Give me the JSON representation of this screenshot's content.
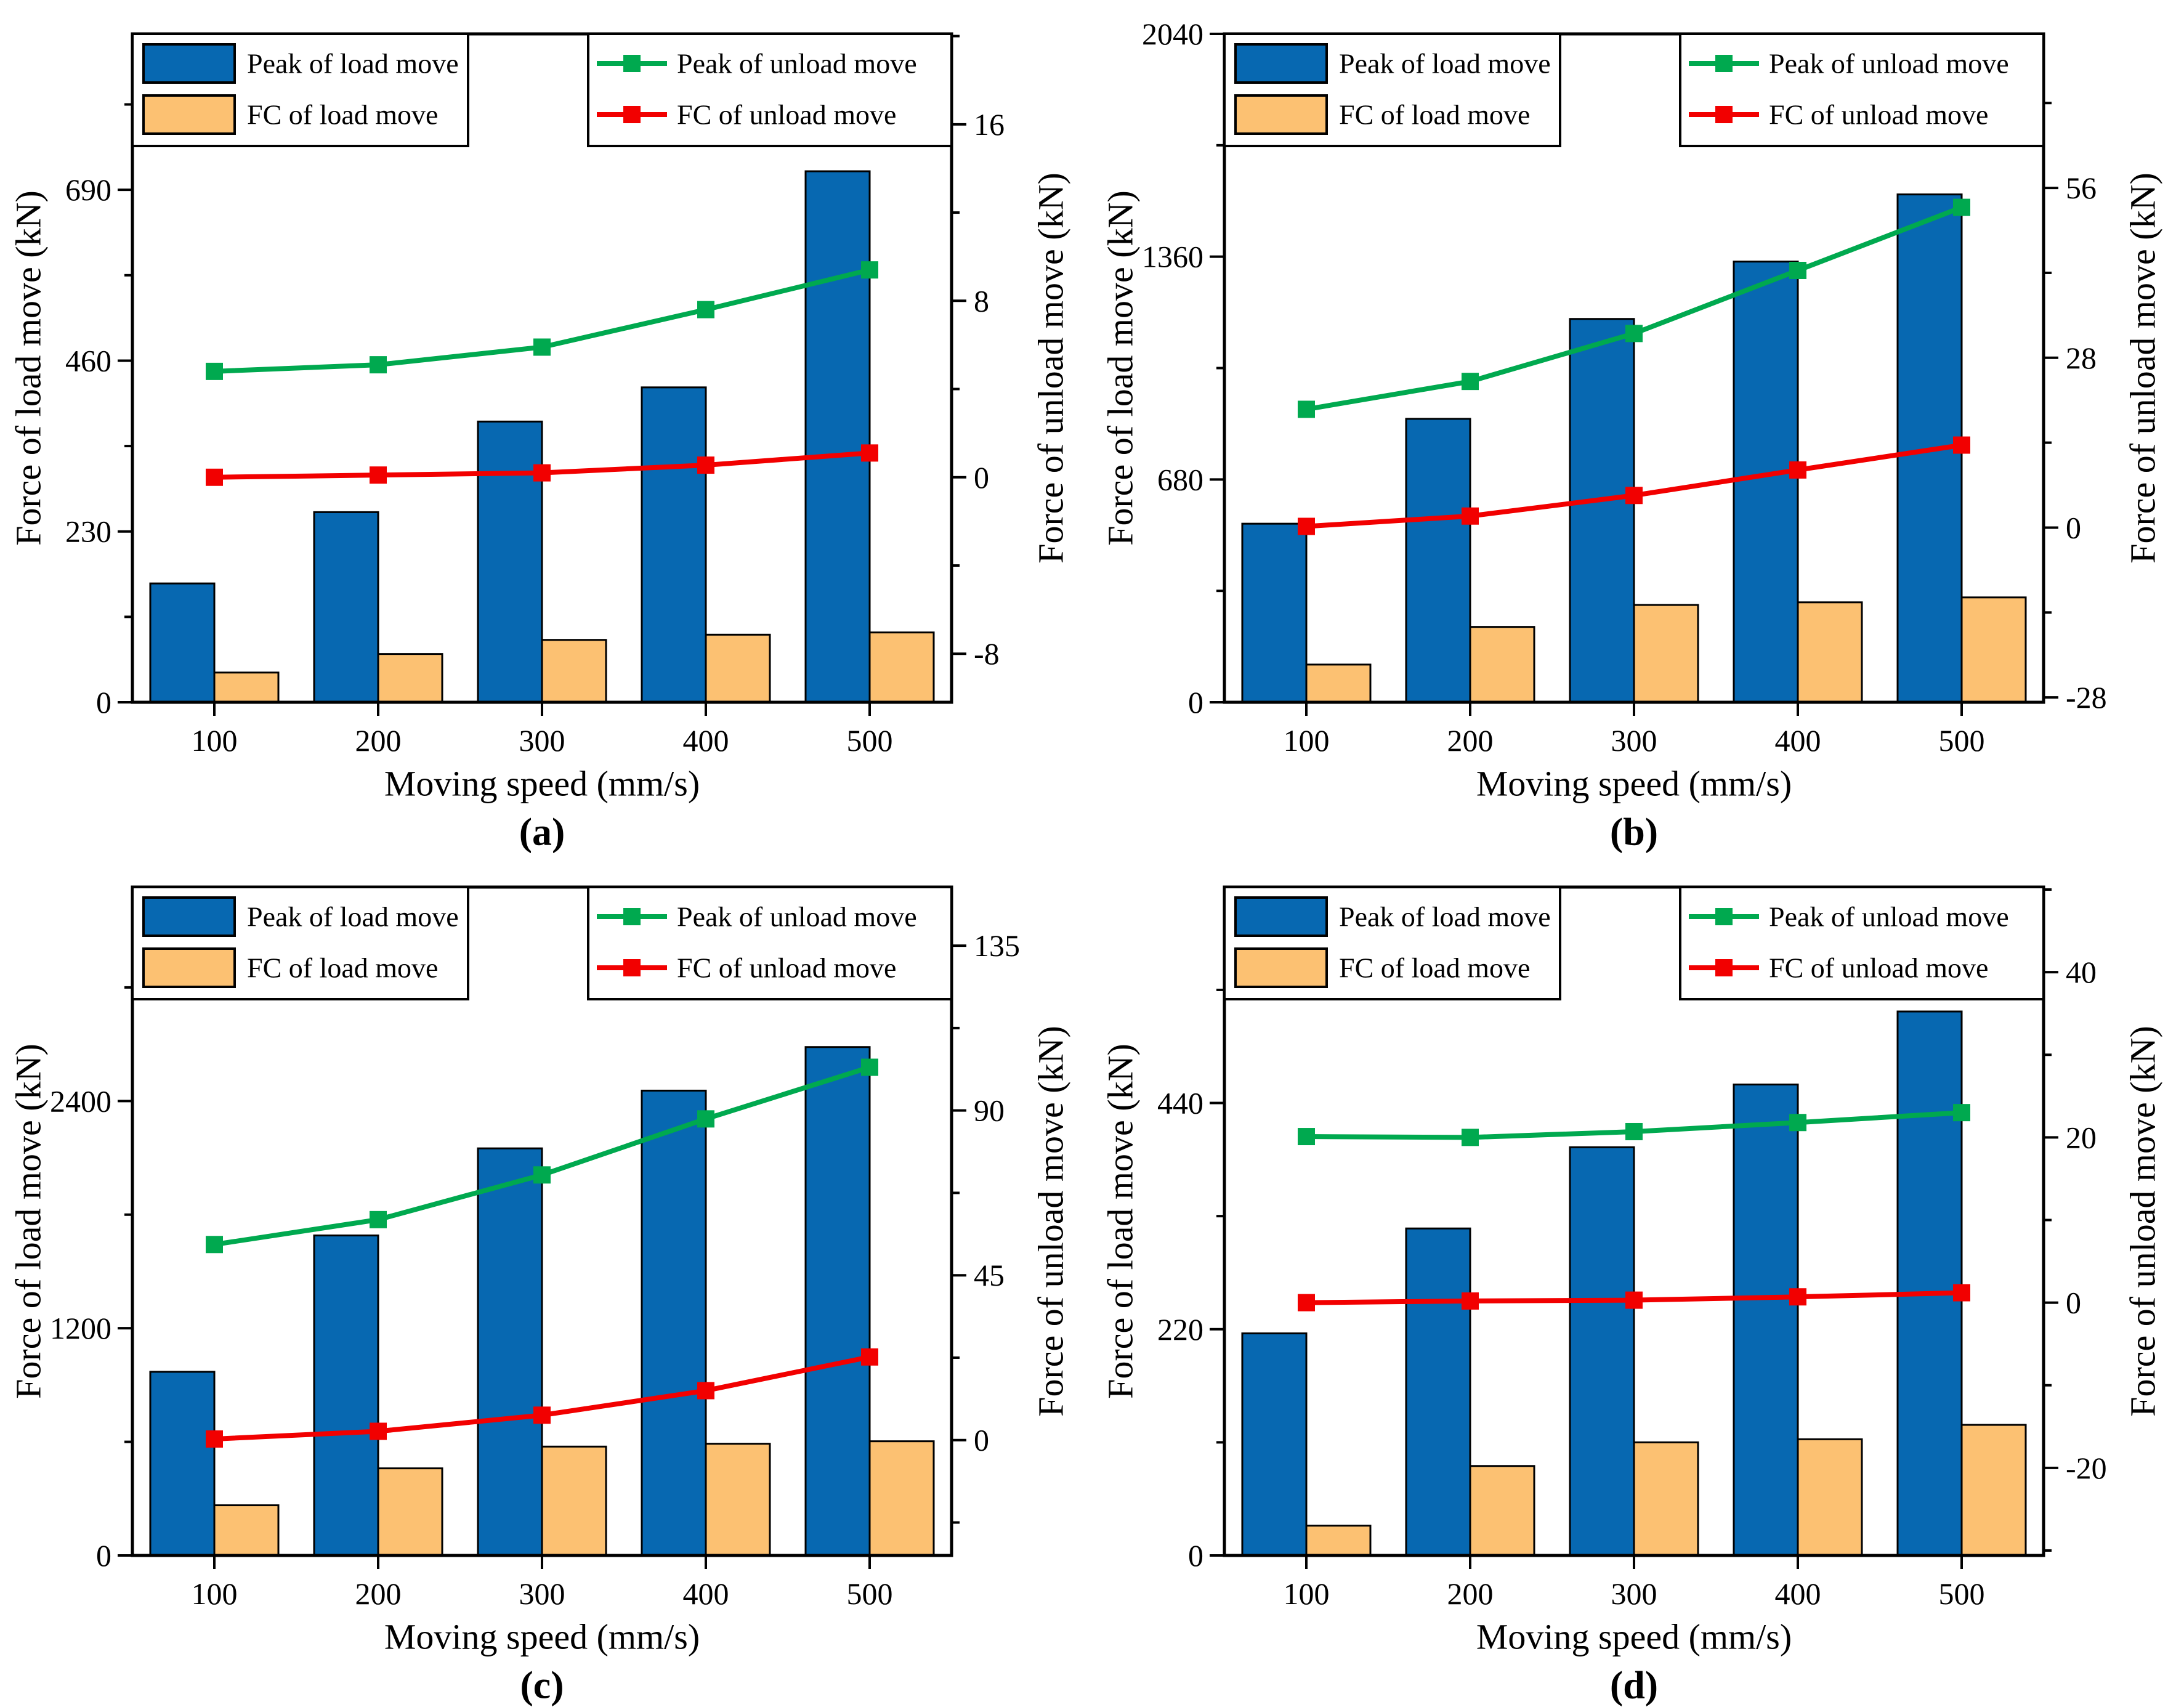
{
  "figure": {
    "background": "#ffffff",
    "xlabel": "Moving speed (mm/s)",
    "ylabel_left": "Force of load move (kN)",
    "ylabel_right": "Force of unload move (kN)",
    "legend": {
      "peak_load": "Peak of load move",
      "fc_load": "FC of load move",
      "peak_unload": "Peak of unload move",
      "fc_unload": "FC of unload move"
    },
    "colors": {
      "peak_load_bar": "#0768b1",
      "fc_load_bar": "#fcc172",
      "peak_unload_line": "#00a94f",
      "fc_unload_line": "#f20000",
      "axis": "#000000",
      "legend_bg": "#ffffff"
    }
  },
  "chart_data": [
    {
      "panel_label": "(a)",
      "type": "bar-line-dual-axis",
      "categories": [
        100,
        200,
        300,
        400,
        500
      ],
      "xlabel": "Moving speed (mm/s)",
      "ylabel_left": "Force of load move (kN)",
      "ylabel_right": "Force of unload move (kN)",
      "left_axis": {
        "ticks": [
          0,
          230,
          460,
          690
        ],
        "range": [
          0,
          900
        ]
      },
      "right_axis": {
        "ticks": [
          -8,
          0,
          8,
          16
        ],
        "range": [
          -10.2,
          20.1
        ]
      },
      "series": [
        {
          "name": "Peak of load move",
          "type": "bar",
          "axis": "left",
          "values": [
            160,
            256,
            378,
            424,
            715
          ]
        },
        {
          "name": "FC of load move",
          "type": "bar",
          "axis": "left",
          "values": [
            40,
            65,
            84,
            91,
            94
          ]
        },
        {
          "name": "Peak of unload move",
          "type": "line",
          "axis": "right",
          "values": [
            4.8,
            5.1,
            5.9,
            7.6,
            9.4
          ]
        },
        {
          "name": "FC of unload move",
          "type": "line",
          "axis": "right",
          "values": [
            0.0,
            0.1,
            0.2,
            0.55,
            1.1
          ]
        }
      ]
    },
    {
      "panel_label": "(b)",
      "type": "bar-line-dual-axis",
      "categories": [
        100,
        200,
        300,
        400,
        500
      ],
      "xlabel": "Moving speed (mm/s)",
      "ylabel_left": "Force of load move (kN)",
      "ylabel_right": "Force of unload move (kN)",
      "left_axis": {
        "ticks": [
          0,
          680,
          1360,
          2040
        ],
        "range": [
          0,
          2040
        ]
      },
      "right_axis": {
        "ticks": [
          -28,
          0,
          28,
          56
        ],
        "range": [
          -28.8,
          81.4
        ]
      },
      "series": [
        {
          "name": "Peak of load move",
          "type": "bar",
          "axis": "left",
          "values": [
            545,
            865,
            1170,
            1345,
            1550
          ]
        },
        {
          "name": "FC of load move",
          "type": "bar",
          "axis": "left",
          "values": [
            115,
            230,
            297,
            305,
            320
          ]
        },
        {
          "name": "Peak of unload move",
          "type": "line",
          "axis": "right",
          "values": [
            19.5,
            24.1,
            32.0,
            42.4,
            52.8
          ]
        },
        {
          "name": "FC of unload move",
          "type": "line",
          "axis": "right",
          "values": [
            0.2,
            1.9,
            5.3,
            9.5,
            13.6
          ]
        }
      ]
    },
    {
      "panel_label": "(c)",
      "type": "bar-line-dual-axis",
      "categories": [
        100,
        200,
        300,
        400,
        500
      ],
      "xlabel": "Moving speed (mm/s)",
      "ylabel_left": "Force of load move (kN)",
      "ylabel_right": "Force of unload move (kN)",
      "left_axis": {
        "ticks": [
          0,
          1200,
          2400
        ],
        "range": [
          0,
          3530
        ]
      },
      "right_axis": {
        "ticks": [
          0,
          45,
          90,
          135
        ],
        "range": [
          -31.5,
          151
        ]
      },
      "series": [
        {
          "name": "Peak of load move",
          "type": "bar",
          "axis": "left",
          "values": [
            970,
            1690,
            2150,
            2455,
            2685
          ]
        },
        {
          "name": "FC of load move",
          "type": "bar",
          "axis": "left",
          "values": [
            265,
            460,
            575,
            590,
            603
          ]
        },
        {
          "name": "Peak of unload move",
          "type": "line",
          "axis": "right",
          "values": [
            53.4,
            60.2,
            72.4,
            87.7,
            101.8
          ]
        },
        {
          "name": "FC of unload move",
          "type": "line",
          "axis": "right",
          "values": [
            0.3,
            2.4,
            6.8,
            13.5,
            22.7
          ]
        }
      ]
    },
    {
      "panel_label": "(d)",
      "type": "bar-line-dual-axis",
      "categories": [
        100,
        200,
        300,
        400,
        500
      ],
      "xlabel": "Moving speed (mm/s)",
      "ylabel_left": "Force of load move (kN)",
      "ylabel_right": "Force of unload move (kN)",
      "left_axis": {
        "ticks": [
          0,
          220,
          440
        ],
        "range": [
          0,
          650
        ]
      },
      "right_axis": {
        "ticks": [
          -20,
          0,
          20,
          40
        ],
        "range": [
          -30.6,
          50.3
        ]
      },
      "series": [
        {
          "name": "Peak of load move",
          "type": "bar",
          "axis": "left",
          "values": [
            216,
            318,
            397,
            458,
            529
          ]
        },
        {
          "name": "FC of load move",
          "type": "bar",
          "axis": "left",
          "values": [
            29,
            87,
            110,
            113,
            127
          ]
        },
        {
          "name": "Peak of unload move",
          "type": "line",
          "axis": "right",
          "values": [
            20.1,
            20.0,
            20.7,
            21.8,
            23.0
          ]
        },
        {
          "name": "FC of unload move",
          "type": "line",
          "axis": "right",
          "values": [
            0.0,
            0.2,
            0.3,
            0.7,
            1.2
          ]
        }
      ]
    }
  ]
}
